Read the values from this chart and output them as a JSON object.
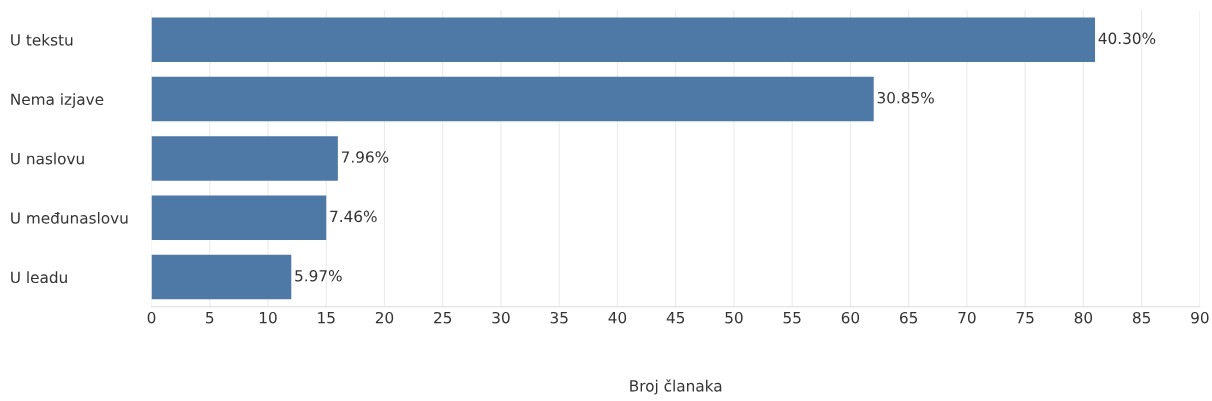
{
  "chart_data": {
    "type": "bar",
    "orientation": "horizontal",
    "xlabel": "Broj članaka",
    "categories": [
      "U tekstu",
      "Nema izjave",
      "U naslovu",
      "U međunaslovu",
      "U leadu"
    ],
    "values": [
      81,
      62,
      16,
      15,
      12
    ],
    "annotations": [
      {
        "text": "40.30%",
        "x": 81,
        "y": "U tekstu"
      },
      {
        "text": "30.85%",
        "x": 62,
        "y": "Nema izjave"
      },
      {
        "text": "7.96%",
        "x": 16,
        "y": "U naslovu"
      },
      {
        "text": "7.46%",
        "x": 15,
        "y": "U međunaslovu"
      },
      {
        "text": "5.97%",
        "x": 12,
        "y": "U leadu"
      }
    ],
    "color": "#4e79a7",
    "xlim": [
      0,
      90
    ],
    "xticks": [
      0,
      5,
      10,
      15,
      20,
      25,
      30,
      35,
      40,
      45,
      50,
      55,
      60,
      65,
      70,
      75,
      80,
      85,
      90
    ],
    "grid": "x",
    "legend": false
  }
}
